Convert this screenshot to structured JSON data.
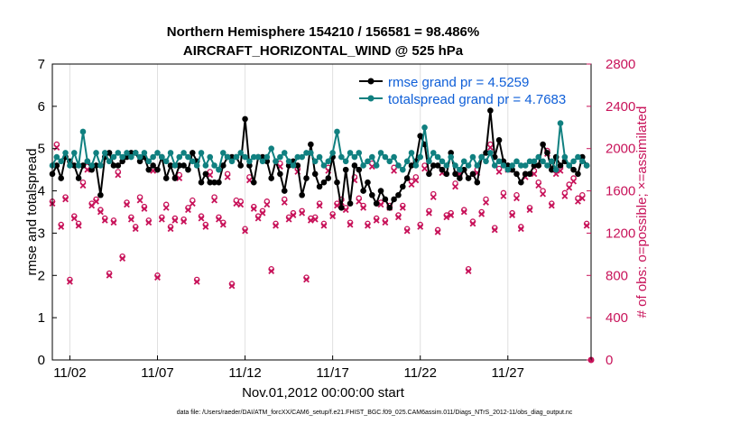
{
  "chart_data": {
    "type": "line",
    "title_line1": "Northern Hemisphere 154210 / 156581 = 98.486%",
    "title_line2": "AIRCRAFT_HORIZONTAL_WIND @ 525 hPa",
    "xlabel": "Nov.01,2012 00:00:00 start",
    "ylabel": "rmse and totalspread",
    "y2label": "# of obs: o=possible; ×=assimilated",
    "xlim": [
      0,
      30.75
    ],
    "ylim": [
      0,
      7
    ],
    "y2lim": [
      0,
      2800
    ],
    "x_ticks": [
      {
        "pos": 1,
        "label": "11/02"
      },
      {
        "pos": 6,
        "label": "11/07"
      },
      {
        "pos": 11,
        "label": "11/12"
      },
      {
        "pos": 16,
        "label": "11/17"
      },
      {
        "pos": 21,
        "label": "11/22"
      },
      {
        "pos": 26,
        "label": "11/27"
      }
    ],
    "y_ticks": [
      "0",
      "1",
      "2",
      "3",
      "4",
      "5",
      "6",
      "7"
    ],
    "y2_ticks": [
      "0",
      "400",
      "800",
      "1200",
      "1600",
      "2000",
      "2400",
      "2800"
    ],
    "legend": {
      "placement": "top-right",
      "entries": [
        "rmse grand pr = 4.5259",
        "totalspread grand pr = 4.7683"
      ]
    },
    "footer": "data file: /Users/raeder/DAI/ATM_forcXX/CAM6_setup/f.e21.FHIST_BGC.f09_025.CAM6assim.011/Diags_NTrS_2012-11/obs_diag_output.nc",
    "colors": {
      "rmse": "#000000",
      "spread": "#108080",
      "obs": "#c8135a",
      "legend_text": "#0f5fd8"
    },
    "series": [
      {
        "name": "rmse",
        "t0": 0,
        "dt": 0.25,
        "values": [
          4.4,
          4.6,
          4.3,
          4.8,
          4.7,
          4.6,
          4.3,
          4.6,
          4.7,
          4.5,
          4.6,
          3.9,
          4.8,
          4.9,
          4.6,
          4.6,
          4.7,
          4.8,
          4.9,
          4.9,
          4.7,
          4.8,
          4.5,
          4.6,
          4.5,
          4.8,
          4.3,
          4.6,
          4.3,
          4.6,
          4.6,
          4.5,
          4.9,
          4.7,
          4.2,
          4.4,
          4.2,
          4.2,
          4.2,
          4.6,
          4.8,
          4.8,
          4.8,
          4.6,
          5.7,
          4.6,
          4.2,
          4.8,
          4.8,
          4.7,
          4.3,
          4.7,
          4.4,
          4.0,
          4.6,
          4.7,
          4.6,
          3.9,
          4.3,
          5.1,
          4.4,
          4.1,
          4.2,
          4.3,
          4.8,
          4.2,
          3.6,
          4.5,
          3.7,
          4.6,
          4.5,
          4.0,
          4.2,
          3.9,
          3.7,
          4.0,
          3.8,
          3.6,
          3.8,
          3.9,
          4.1,
          4.3,
          4.6,
          4.7,
          5.3,
          5.1,
          4.4,
          4.6,
          4.6,
          4.5,
          4.4,
          4.9,
          4.4,
          4.3,
          4.5,
          4.3,
          4.4,
          4.2,
          4.8,
          4.9,
          5.9,
          4.8,
          5.2,
          4.7,
          4.6,
          4.5,
          4.4,
          4.2,
          4.4,
          4.4,
          4.6,
          4.6,
          5.1,
          4.9,
          4.5,
          4.8,
          4.6,
          4.7,
          4.6,
          4.5,
          4.4,
          4.8,
          4.6
        ]
      },
      {
        "name": "totalspread",
        "t0": 0,
        "dt": 0.25,
        "values": [
          4.6,
          4.8,
          4.7,
          4.9,
          4.6,
          4.9,
          4.6,
          5.4,
          4.7,
          4.6,
          4.9,
          4.6,
          4.9,
          4.7,
          4.8,
          4.9,
          4.8,
          4.9,
          4.8,
          4.9,
          4.8,
          4.9,
          4.7,
          4.8,
          4.9,
          4.8,
          4.7,
          4.9,
          4.6,
          4.8,
          4.9,
          4.8,
          4.7,
          4.6,
          4.9,
          4.6,
          4.8,
          4.6,
          4.5,
          4.9,
          4.8,
          4.7,
          4.8,
          4.9,
          4.8,
          4.7,
          4.8,
          4.8,
          4.7,
          4.8,
          5.0,
          4.7,
          4.8,
          4.9,
          4.7,
          4.6,
          4.8,
          4.8,
          4.9,
          4.9,
          4.7,
          4.8,
          4.6,
          4.7,
          4.9,
          5.4,
          4.8,
          4.7,
          4.9,
          4.8,
          4.9,
          4.6,
          4.7,
          4.8,
          4.6,
          4.9,
          4.8,
          4.7,
          4.8,
          4.6,
          4.5,
          4.7,
          4.9,
          4.6,
          4.8,
          5.5,
          4.7,
          4.9,
          4.8,
          4.7,
          4.6,
          4.8,
          4.6,
          4.5,
          4.7,
          4.6,
          4.8,
          4.6,
          4.8,
          4.7,
          4.9,
          4.6,
          4.7,
          4.6,
          4.5,
          4.6,
          4.7,
          4.6,
          4.6,
          4.7,
          4.7,
          4.8,
          4.7,
          4.6,
          4.7,
          4.5,
          5.6,
          4.8,
          4.6,
          4.7,
          4.8,
          4.7,
          4.6
        ]
      },
      {
        "name": "obs_possible",
        "t0": 0,
        "dt": 0.25,
        "values": [
          1500,
          2040,
          1280,
          1540,
          760,
          1360,
          1290,
          1680,
          1830,
          1480,
          1520,
          1420,
          1340,
          820,
          1320,
          1780,
          980,
          1490,
          1350,
          1260,
          1540,
          1450,
          1320,
          1820,
          800,
          1350,
          1470,
          1260,
          1340,
          1750,
          1330,
          1440,
          1510,
          760,
          1360,
          1280,
          1780,
          1540,
          1350,
          1300,
          1760,
          720,
          1510,
          1500,
          1240,
          1730,
          1450,
          1360,
          1410,
          1500,
          860,
          1290,
          1860,
          1520,
          1350,
          1390,
          1810,
          1410,
          780,
          1340,
          1350,
          1480,
          1290,
          1820,
          1380,
          1480,
          1520,
          1440,
          1300,
          1730,
          1530,
          1460,
          1290,
          1860,
          1340,
          1490,
          1320,
          1460,
          1820,
          1370,
          1460,
          1240,
          1690,
          1730,
          1280,
          1840,
          1410,
          1570,
          1230,
          1800,
          1370,
          1390,
          1670,
          1790,
          1420,
          860,
          1310,
          1800,
          1400,
          1520,
          2040,
          1250,
          1810,
          1580,
          1830,
          1390,
          1560,
          1260,
          1760,
          1440,
          1790,
          1680,
          1600,
          1980,
          1480,
          1790,
          1820,
          1580,
          1660,
          1720,
          1530,
          1560,
          1290
        ]
      },
      {
        "name": "obs_assimilated",
        "t0": 0,
        "dt": 0.25,
        "values": [
          1480,
          2010,
          1260,
          1520,
          740,
          1340,
          1270,
          1650,
          1800,
          1460,
          1500,
          1400,
          1320,
          800,
          1300,
          1750,
          960,
          1470,
          1330,
          1240,
          1510,
          1430,
          1300,
          1790,
          780,
          1330,
          1440,
          1240,
          1320,
          1720,
          1310,
          1420,
          1480,
          740,
          1340,
          1260,
          1750,
          1510,
          1330,
          1280,
          1730,
          700,
          1480,
          1470,
          1220,
          1700,
          1430,
          1340,
          1390,
          1470,
          840,
          1270,
          1830,
          1490,
          1330,
          1370,
          1780,
          1390,
          760,
          1320,
          1330,
          1460,
          1270,
          1790,
          1360,
          1460,
          1490,
          1420,
          1280,
          1700,
          1500,
          1440,
          1270,
          1830,
          1320,
          1470,
          1300,
          1440,
          1790,
          1350,
          1440,
          1220,
          1660,
          1700,
          1260,
          1810,
          1390,
          1540,
          1210,
          1770,
          1350,
          1370,
          1640,
          1760,
          1400,
          840,
          1290,
          1770,
          1380,
          1490,
          2010,
          1230,
          1780,
          1550,
          1800,
          1370,
          1530,
          1240,
          1730,
          1420,
          1760,
          1650,
          1570,
          1950,
          1460,
          1760,
          1790,
          1550,
          1630,
          1690,
          1500,
          1530,
          1270
        ]
      }
    ],
    "end_point": {
      "x": 30.75,
      "y2": 0
    }
  }
}
